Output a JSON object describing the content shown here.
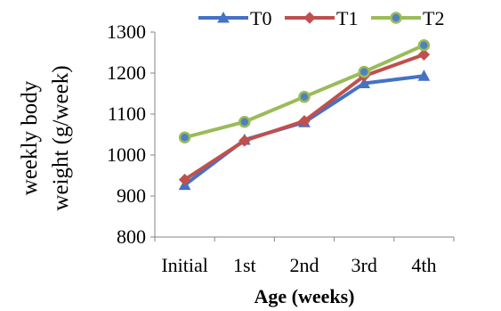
{
  "chart_data": {
    "type": "line",
    "categories": [
      "Initial",
      "1st",
      "2nd",
      "3rd",
      "4th"
    ],
    "series": [
      {
        "name": "T0",
        "values": [
          927,
          1037,
          1080,
          1175,
          1193
        ],
        "color": "#4472C4",
        "marker": "triangle"
      },
      {
        "name": "T1",
        "values": [
          940,
          1035,
          1083,
          1193,
          1245
        ],
        "color": "#C0504D",
        "marker": "diamond"
      },
      {
        "name": "T2",
        "values": [
          1043,
          1081,
          1142,
          1203,
          1268
        ],
        "color": "#9BBB59",
        "marker": "circle"
      }
    ],
    "xlabel": "Age (weeks)",
    "ylabel_lines": [
      "weekly body",
      "weight (g/week)"
    ],
    "ylim": [
      800,
      1300
    ],
    "yticks": [
      800,
      900,
      1000,
      1100,
      1200,
      1300
    ],
    "grid": false,
    "legend_position": "top"
  }
}
